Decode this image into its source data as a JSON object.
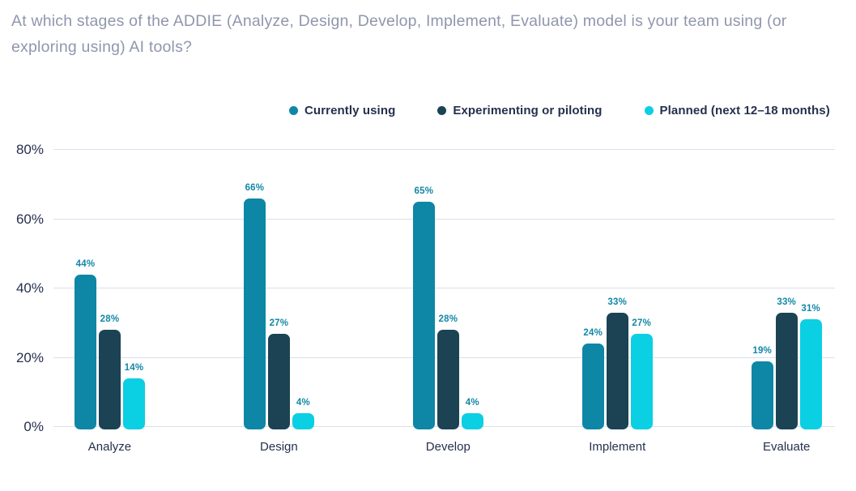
{
  "title": "At which stages of the ADDIE (Analyze, Design, Develop, Implement, Evaluate) model is your team using (or exploring using) AI tools?",
  "colors": {
    "title_text": "#9096ad",
    "axis_text": "#25304d",
    "gridline": "#dcdfeb",
    "value_label": "#1287a6",
    "background": "#ffffff"
  },
  "chart_data": {
    "type": "bar",
    "title": "At which stages of the ADDIE (Analyze, Design, Develop, Implement, Evaluate) model is your team using (or exploring using) AI tools?",
    "categories": [
      "Analyze",
      "Design",
      "Develop",
      "Implement",
      "Evaluate"
    ],
    "series": [
      {
        "name": "Currently using",
        "color": "#0d87a5",
        "values": [
          44,
          66,
          65,
          24,
          19
        ]
      },
      {
        "name": "Experimenting or piloting",
        "color": "#1b4354",
        "values": [
          28,
          27,
          28,
          33,
          33
        ]
      },
      {
        "name": "Planned (next 12–18 months)",
        "color": "#0bcfe2",
        "values": [
          14,
          4,
          4,
          27,
          31
        ]
      }
    ],
    "y_ticks": [
      "0%",
      "20%",
      "40%",
      "60%",
      "80%"
    ],
    "y_tick_values": [
      0,
      20,
      40,
      60,
      80
    ],
    "ylim": [
      0,
      80
    ],
    "grid": true,
    "legend_position": "top",
    "value_label_format": "{v}%",
    "xlabel": "",
    "ylabel": ""
  }
}
